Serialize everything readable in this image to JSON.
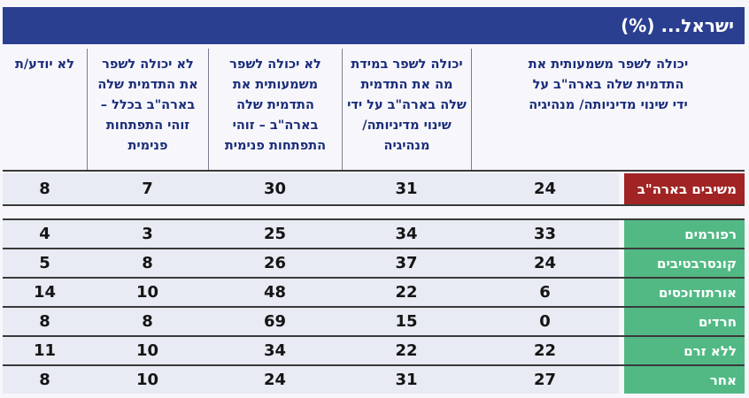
{
  "chart_data": {
    "type": "table",
    "title": "ישראל... (%)",
    "units": "percent",
    "direction": "rtl",
    "columns": [
      "יכולה לשפר משמעותית את התדמית שלה בארה\"ב על ידי שינוי מדיניותה/ מנהיגיה",
      "יכולה לשפר במידת מה את התדמית שלה בארה\"ב על ידי שינוי מדיניותה/ מנהיגיה",
      "לא יכולה לשפר משמעותית את התדמית שלה בארה\"ב – זוהי התפתחות פנימית",
      "לא יכולה לשפר את התדמית שלה בארה\"ב בכלל – זוהי התפתחות פנימית",
      "לא יודע/ת"
    ],
    "rows": [
      {
        "label": "משיבים בארה\"ב",
        "values": [
          24,
          31,
          30,
          7,
          8
        ]
      },
      {
        "label": "רפורמים",
        "values": [
          33,
          34,
          25,
          3,
          4
        ]
      },
      {
        "label": "קונסרבטיבים",
        "values": [
          24,
          37,
          26,
          8,
          5
        ]
      },
      {
        "label": "אורתודוכסים",
        "values": [
          6,
          22,
          48,
          10,
          14
        ]
      },
      {
        "label": "חרדים",
        "values": [
          0,
          15,
          69,
          8,
          8
        ]
      },
      {
        "label": "ללא זרם",
        "values": [
          22,
          22,
          34,
          10,
          11
        ]
      },
      {
        "label": "אחר",
        "values": [
          27,
          31,
          24,
          10,
          8
        ]
      }
    ]
  },
  "colors": {
    "page_bg": "#f7f7fb",
    "title_bg": "#2b3f90",
    "title_text": "#ffffff",
    "header_text": "#1b2d7a",
    "grid_line": "#3a3a3a",
    "row_bg": "#e8eaf4",
    "us_label_bg": "#a12323",
    "group_label_bg": "#52b985"
  }
}
